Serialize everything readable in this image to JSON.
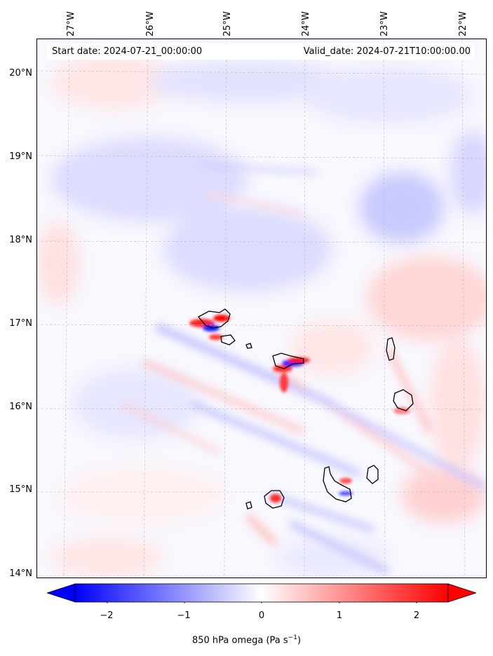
{
  "map": {
    "lon_labels": [
      "27°W",
      "26°W",
      "25°W",
      "24°W",
      "23°W",
      "22°W"
    ],
    "lat_labels": [
      "20°N",
      "19°N",
      "18°N",
      "17°N",
      "16°N",
      "15°N",
      "14°N"
    ],
    "info": {
      "start_date": "Start date: 2024-07-21_00:00:00",
      "valid_date": "Valid_date: 2024-07-21T10:00:00.00"
    }
  },
  "colorbar": {
    "ticks": [
      "−2",
      "−1",
      "0",
      "1",
      "2"
    ],
    "label": "850 hPa omega (Pa s",
    "label_sup": "−1",
    "label_end": ")",
    "range": [
      -2.6,
      2.6
    ],
    "colormap": "bwr",
    "extend": "both"
  },
  "colors": {
    "positive": "#ff0000",
    "negative": "#0000ff",
    "coastline": "#000000"
  }
}
